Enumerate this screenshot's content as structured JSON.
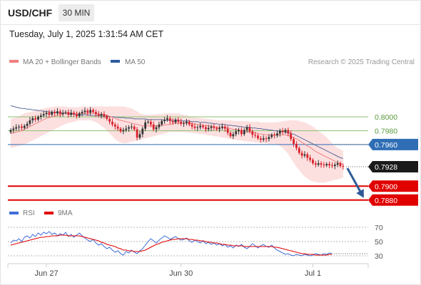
{
  "header": {
    "symbol": "USD/CHF",
    "timeframe": "30 MIN",
    "timestamp": "Tuesday, July 1, 2025 1:31:54 AM CET"
  },
  "colors": {
    "bull": "#333333",
    "bear": "#d8202a",
    "ma20": "#f08080",
    "bb_fill": "#fbd6d6",
    "ma50": "#5a6d9a",
    "level_green": "#8cc370",
    "level_blue": "#2f6eb5",
    "level_red": "#e00000",
    "rsi": "#3f6ed8",
    "rsi_ma": "#e00000",
    "forecast_arrow": "#2e5a96",
    "price_tag": "#1a1a1a"
  },
  "chart_data": [
    {
      "type": "candlestick",
      "title": "",
      "legend": [
        {
          "name": "MA 20 + Bollinger Bands",
          "color": "#f08080"
        },
        {
          "name": "MA 50",
          "color": "#2c5aa0"
        }
      ],
      "watermark": "Research © 2025 Trading Central",
      "x_ticks": [
        {
          "bar": 13,
          "label": "Jun 27"
        },
        {
          "bar": 62,
          "label": "Jun 30"
        },
        {
          "bar": 110,
          "label": "Jul 1"
        }
      ],
      "ylim": [
        0.78705,
        0.80555
      ],
      "price_axis_labels": [
        "0.8000",
        "0.7980",
        "0.7960",
        "0.7928",
        "0.7900",
        "0.7880"
      ],
      "levels": [
        {
          "value": 0.8,
          "label": "0.8000",
          "kind": "resistance",
          "style": "green"
        },
        {
          "value": 0.798,
          "label": "0.7980",
          "kind": "resistance",
          "style": "green"
        },
        {
          "value": 0.796,
          "label": "0.7960",
          "kind": "pivot",
          "style": "blue"
        },
        {
          "value": 0.79,
          "label": "0.7900",
          "kind": "support",
          "style": "red"
        },
        {
          "value": 0.788,
          "label": "0.7880",
          "kind": "support",
          "style": "red"
        }
      ],
      "last_price": {
        "value": 0.7928,
        "label": "0.7928"
      },
      "forecast": {
        "from": 0.7928,
        "to": 0.788,
        "direction": "down"
      },
      "closes": [
        0.7981,
        0.7983,
        0.7985,
        0.7986,
        0.7984,
        0.7987,
        0.799,
        0.7995,
        0.7998,
        0.7996,
        0.8,
        0.8002,
        0.8004,
        0.8006,
        0.8003,
        0.8007,
        0.8005,
        0.8008,
        0.8004,
        0.8006,
        0.8007,
        0.8003,
        0.8006,
        0.8004,
        0.8001,
        0.8005,
        0.8007,
        0.8009,
        0.8006,
        0.801,
        0.8007,
        0.8004,
        0.8002,
        0.8004,
        0.8001,
        0.7997,
        0.7993,
        0.7989,
        0.7986,
        0.7983,
        0.7979,
        0.7981,
        0.7983,
        0.7985,
        0.7986,
        0.7982,
        0.797,
        0.7975,
        0.7983,
        0.7992,
        0.7993,
        0.7989,
        0.7982,
        0.7985,
        0.7989,
        0.7994,
        0.7996,
        0.7998,
        0.7994,
        0.7992,
        0.7996,
        0.7993,
        0.799,
        0.7991,
        0.7993,
        0.7989,
        0.7986,
        0.7984,
        0.7985,
        0.7987,
        0.7985,
        0.7982,
        0.7984,
        0.7986,
        0.7984,
        0.7982,
        0.7984,
        0.7986,
        0.7983,
        0.7977,
        0.7972,
        0.7975,
        0.7979,
        0.7981,
        0.7975,
        0.7981,
        0.7985,
        0.7979,
        0.7974,
        0.7973,
        0.7969,
        0.7967,
        0.7969,
        0.7968,
        0.7971,
        0.7974,
        0.7973,
        0.7976,
        0.798,
        0.7978,
        0.7981,
        0.7976,
        0.7968,
        0.7961,
        0.7955,
        0.7948,
        0.7944,
        0.7946,
        0.7941,
        0.7938,
        0.7933,
        0.7931,
        0.7933,
        0.7931,
        0.793,
        0.7932,
        0.793,
        0.7929,
        0.7931,
        0.7933,
        0.7929,
        0.7928
      ],
      "ma20": [
        0.7976,
        0.7977,
        0.7978,
        0.7979,
        0.798,
        0.7982,
        0.7984,
        0.7986,
        0.7988,
        0.799,
        0.7992,
        0.7994,
        0.7996,
        0.7998,
        0.7999,
        0.8,
        0.8001,
        0.8002,
        0.8003,
        0.8004,
        0.8005,
        0.8005,
        0.8005,
        0.8005,
        0.8005,
        0.8005,
        0.8005,
        0.8005,
        0.8005,
        0.8005,
        0.8005,
        0.8005,
        0.8004,
        0.8004,
        0.8003,
        0.8002,
        0.8001,
        0.7999,
        0.7998,
        0.7996,
        0.7995,
        0.7994,
        0.7993,
        0.7992,
        0.7991,
        0.799,
        0.7989,
        0.7988,
        0.7987,
        0.7987,
        0.7987,
        0.7987,
        0.7987,
        0.7987,
        0.7987,
        0.7988,
        0.7988,
        0.7989,
        0.7989,
        0.799,
        0.7991,
        0.7991,
        0.7991,
        0.7991,
        0.7991,
        0.7991,
        0.799,
        0.799,
        0.7989,
        0.7989,
        0.7988,
        0.7987,
        0.7987,
        0.7986,
        0.7986,
        0.7985,
        0.7985,
        0.7985,
        0.7984,
        0.7984,
        0.7983,
        0.7982,
        0.7982,
        0.7981,
        0.798,
        0.798,
        0.7979,
        0.7978,
        0.7978,
        0.7977,
        0.7976,
        0.7975,
        0.7975,
        0.7974,
        0.7974,
        0.7974,
        0.7974,
        0.7974,
        0.7974,
        0.7974,
        0.7974,
        0.7973,
        0.7972,
        0.797,
        0.7968,
        0.7966,
        0.7963,
        0.7961,
        0.7958,
        0.7956,
        0.7953,
        0.795,
        0.7948,
        0.7946,
        0.7944,
        0.7942,
        0.794,
        0.7938,
        0.7936,
        0.7934,
        0.7933,
        0.7932
      ],
      "bb_upper": [
        0.7997,
        0.7998,
        0.7999,
        0.8001,
        0.8003,
        0.8005,
        0.8006,
        0.8007,
        0.8008,
        0.8009,
        0.801,
        0.8011,
        0.8012,
        0.8013,
        0.8014,
        0.8014,
        0.8015,
        0.8015,
        0.8015,
        0.8015,
        0.8015,
        0.8014,
        0.8014,
        0.8014,
        0.8014,
        0.8014,
        0.8015,
        0.8015,
        0.8015,
        0.8015,
        0.8015,
        0.8015,
        0.8015,
        0.8015,
        0.8015,
        0.8015,
        0.8015,
        0.8015,
        0.8015,
        0.8015,
        0.8015,
        0.8015,
        0.8014,
        0.8013,
        0.8012,
        0.801,
        0.8008,
        0.8005,
        0.8004,
        0.8003,
        0.8003,
        0.8003,
        0.8003,
        0.8004,
        0.8004,
        0.8004,
        0.8005,
        0.8005,
        0.8005,
        0.8005,
        0.8005,
        0.8005,
        0.8004,
        0.8003,
        0.8002,
        0.8001,
        0.8,
        0.7999,
        0.7999,
        0.7998,
        0.7998,
        0.7997,
        0.7997,
        0.7996,
        0.7996,
        0.7995,
        0.7995,
        0.7995,
        0.7995,
        0.7995,
        0.7995,
        0.7994,
        0.7994,
        0.7994,
        0.7994,
        0.7994,
        0.7994,
        0.7993,
        0.7993,
        0.7993,
        0.7993,
        0.7992,
        0.7992,
        0.7992,
        0.7992,
        0.7992,
        0.7992,
        0.7992,
        0.7993,
        0.7994,
        0.7994,
        0.7995,
        0.7995,
        0.7995,
        0.7995,
        0.7994,
        0.7993,
        0.7992,
        0.799,
        0.7988,
        0.7986,
        0.7983,
        0.798,
        0.7977,
        0.7974,
        0.797,
        0.7966,
        0.7962,
        0.7958,
        0.7955,
        0.7953,
        0.7951
      ],
      "bb_lower": [
        0.7955,
        0.7956,
        0.7957,
        0.7958,
        0.7959,
        0.796,
        0.7962,
        0.7964,
        0.7966,
        0.7968,
        0.797,
        0.7972,
        0.7974,
        0.7976,
        0.7978,
        0.798,
        0.7982,
        0.7984,
        0.7986,
        0.7988,
        0.799,
        0.7991,
        0.7992,
        0.7993,
        0.7994,
        0.7995,
        0.7995,
        0.7995,
        0.7995,
        0.7995,
        0.7994,
        0.7992,
        0.799,
        0.7987,
        0.7984,
        0.798,
        0.7976,
        0.7972,
        0.7968,
        0.7965,
        0.7963,
        0.7962,
        0.7962,
        0.7963,
        0.7964,
        0.7965,
        0.7966,
        0.7967,
        0.7968,
        0.7969,
        0.797,
        0.7971,
        0.7972,
        0.7973,
        0.7974,
        0.7975,
        0.7976,
        0.7977,
        0.7978,
        0.7978,
        0.7978,
        0.7978,
        0.7978,
        0.7978,
        0.7978,
        0.7977,
        0.7977,
        0.7976,
        0.7976,
        0.7975,
        0.7975,
        0.7974,
        0.7973,
        0.7973,
        0.7972,
        0.7972,
        0.7971,
        0.797,
        0.797,
        0.7969,
        0.7968,
        0.7967,
        0.7967,
        0.7966,
        0.7966,
        0.7965,
        0.7965,
        0.7964,
        0.7964,
        0.7963,
        0.7963,
        0.7962,
        0.7962,
        0.7962,
        0.7961,
        0.7961,
        0.7961,
        0.796,
        0.7958,
        0.7955,
        0.7951,
        0.7946,
        0.794,
        0.7934,
        0.7928,
        0.7923,
        0.7918,
        0.7914,
        0.7911,
        0.7908,
        0.7907,
        0.7906,
        0.7905,
        0.7905,
        0.7905,
        0.7906,
        0.7907,
        0.7908,
        0.7909,
        0.791,
        0.7911,
        0.7912
      ],
      "ma50": [
        0.8016,
        0.8015,
        0.8014,
        0.8013,
        0.8012,
        0.8012,
        0.8011,
        0.8011,
        0.801,
        0.801,
        0.8009,
        0.8009,
        0.8008,
        0.8008,
        0.8007,
        0.8007,
        0.8007,
        0.8006,
        0.8006,
        0.8005,
        0.8005,
        0.8004,
        0.8004,
        0.8004,
        0.8003,
        0.8003,
        0.8003,
        0.8003,
        0.8003,
        0.8002,
        0.8002,
        0.8002,
        0.8002,
        0.8001,
        0.8001,
        0.8001,
        0.8,
        0.8,
        0.8,
        0.7999,
        0.7999,
        0.7999,
        0.7998,
        0.7998,
        0.7998,
        0.7997,
        0.7997,
        0.7997,
        0.7997,
        0.7997,
        0.7996,
        0.7996,
        0.7996,
        0.7996,
        0.7996,
        0.7996,
        0.7995,
        0.7995,
        0.7995,
        0.7995,
        0.7995,
        0.7995,
        0.7994,
        0.7994,
        0.7994,
        0.7994,
        0.7993,
        0.7993,
        0.7993,
        0.7992,
        0.7992,
        0.7992,
        0.7991,
        0.7991,
        0.799,
        0.799,
        0.7989,
        0.7989,
        0.7989,
        0.7988,
        0.7988,
        0.7987,
        0.7987,
        0.7986,
        0.7986,
        0.7985,
        0.7985,
        0.7985,
        0.7984,
        0.7984,
        0.7983,
        0.7983,
        0.7982,
        0.7982,
        0.7981,
        0.7981,
        0.798,
        0.798,
        0.7979,
        0.7979,
        0.7978,
        0.7977,
        0.7976,
        0.7975,
        0.7973,
        0.7971,
        0.7969,
        0.7967,
        0.7965,
        0.7963,
        0.7961,
        0.7959,
        0.7957,
        0.7955,
        0.7953,
        0.7951,
        0.7949,
        0.7947,
        0.7945,
        0.7943,
        0.7941,
        0.794
      ]
    },
    {
      "type": "line",
      "title": "",
      "legend": [
        {
          "name": "RSI",
          "color": "#3f6ed8"
        },
        {
          "name": "9MA",
          "color": "#e00000"
        }
      ],
      "ylim": [
        23,
        77
      ],
      "y_ticks": [
        "70",
        "50",
        "30"
      ],
      "rsi": [
        48,
        52,
        51,
        54,
        50,
        56,
        58,
        55,
        60,
        57,
        62,
        59,
        63,
        61,
        64,
        60,
        62,
        58,
        61,
        59,
        63,
        57,
        60,
        56,
        59,
        62,
        58,
        55,
        52,
        50,
        53,
        48,
        45,
        47,
        43,
        40,
        42,
        38,
        35,
        37,
        33,
        31,
        36,
        34,
        38,
        35,
        33,
        37,
        40,
        45,
        50,
        54,
        51,
        48,
        52,
        55,
        58,
        56,
        53,
        55,
        57,
        54,
        52,
        53,
        55,
        51,
        49,
        52,
        50,
        48,
        51,
        47,
        49,
        46,
        48,
        45,
        47,
        44,
        46,
        42,
        44,
        41,
        45,
        43,
        46,
        42,
        40,
        43,
        47,
        44,
        41,
        44,
        46,
        43,
        42,
        45,
        41,
        38,
        36,
        34,
        32,
        33,
        31,
        30,
        32,
        31,
        30,
        32,
        31,
        30,
        31,
        33,
        32,
        31,
        33,
        32,
        34,
        33
      ],
      "rsi_ma": [
        45,
        46,
        47,
        48,
        49,
        50,
        51,
        52,
        53,
        54,
        55,
        56,
        56,
        57,
        57,
        58,
        58,
        58,
        59,
        59,
        59,
        58,
        58,
        58,
        58,
        58,
        57,
        56,
        55,
        54,
        53,
        52,
        51,
        49,
        48,
        46,
        45,
        44,
        43,
        41,
        40,
        38,
        38,
        37,
        37,
        36,
        36,
        36,
        37,
        38,
        40,
        42,
        44,
        46,
        47,
        49,
        50,
        51,
        52,
        53,
        53,
        54,
        54,
        54,
        54,
        53,
        53,
        52,
        52,
        51,
        51,
        50,
        49,
        49,
        48,
        48,
        47,
        46,
        46,
        45,
        45,
        44,
        44,
        44,
        44,
        43,
        43,
        43,
        43,
        43,
        43,
        43,
        43,
        43,
        43,
        43,
        42,
        42,
        41,
        40,
        39,
        38,
        37,
        36,
        35,
        34,
        33,
        33,
        32,
        32,
        32,
        31,
        31,
        31,
        31,
        31,
        32,
        32
      ]
    }
  ]
}
